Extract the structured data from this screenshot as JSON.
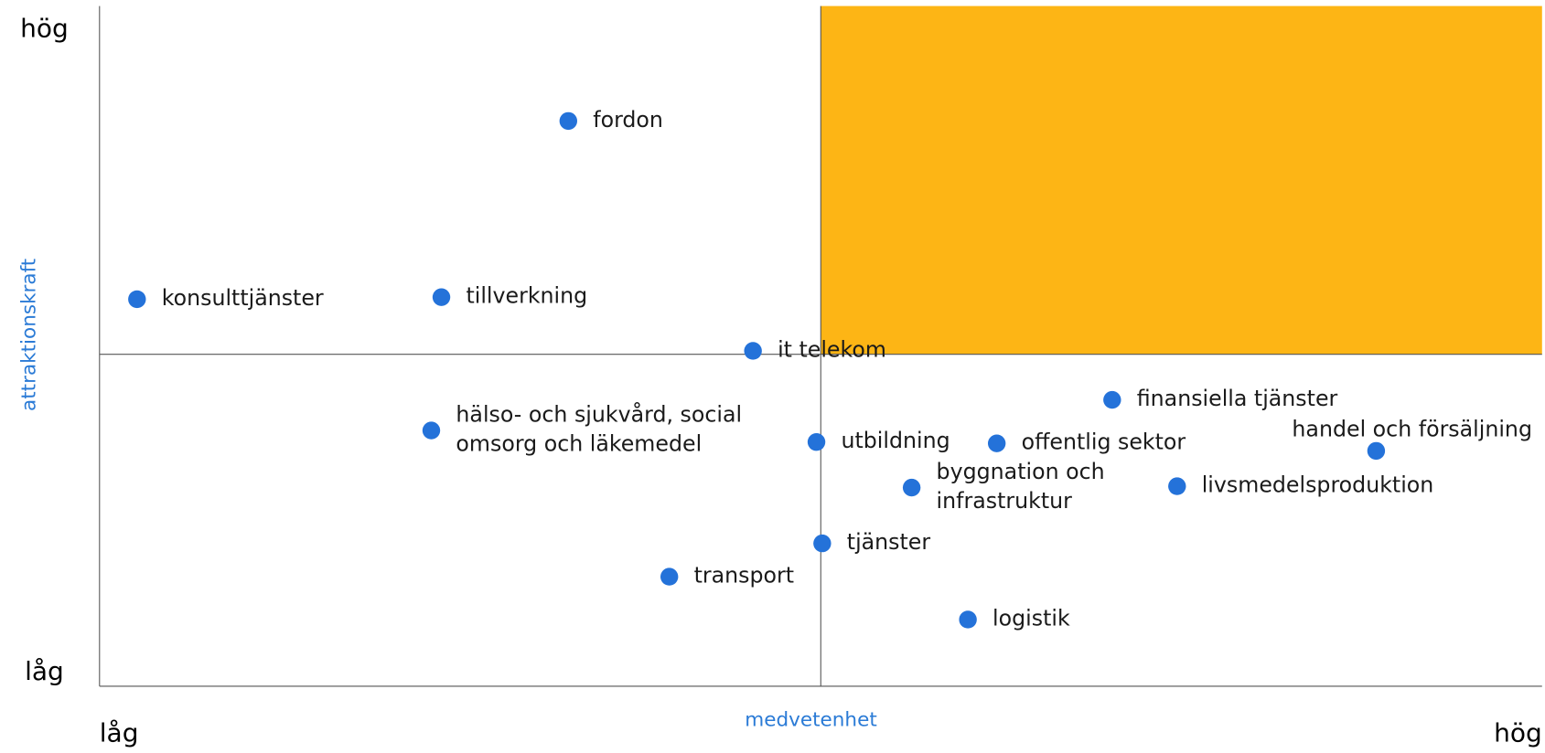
{
  "chart_data": {
    "type": "scatter",
    "xlabel": "medvetenhet",
    "ylabel": "attraktionskraft",
    "xlim": [
      0,
      100
    ],
    "ylim": [
      0,
      100
    ],
    "xticks": [
      {
        "value": 0,
        "label": "låg"
      },
      {
        "value": 100,
        "label": "hög"
      }
    ],
    "yticks": [
      {
        "value": 0,
        "label": "låg"
      },
      {
        "value": 100,
        "label": "hög"
      }
    ],
    "quadrant_split": {
      "x": 50,
      "y": 48.8
    },
    "highlight_color": "#fdb515",
    "color": "#2472d9",
    "labels": [
      [
        "fordon"
      ],
      [
        "konsulttjänster"
      ],
      [
        "tillverkning"
      ],
      [
        "it telekom"
      ],
      [
        "hälso- och sjukvård, social",
        "omsorg och läkemedel"
      ],
      [
        "utbildning"
      ],
      [
        "offentlig sektor"
      ],
      [
        "finansiella tjänster"
      ],
      [
        "handel och försäljning"
      ],
      [
        "byggnation och",
        "infrastruktur"
      ],
      [
        "livsmedelsproduktion"
      ],
      [
        "tjänster"
      ],
      [
        "transport"
      ],
      [
        "logistik"
      ]
    ],
    "x": [
      32.5,
      2.6,
      23.7,
      45.3,
      23.0,
      49.7,
      62.2,
      70.2,
      88.5,
      56.3,
      74.7,
      50.1,
      39.5,
      60.2
    ],
    "y": [
      83.1,
      56.9,
      57.2,
      49.3,
      37.6,
      35.9,
      35.7,
      42.1,
      34.6,
      29.2,
      29.4,
      21.0,
      16.1,
      9.8
    ]
  }
}
